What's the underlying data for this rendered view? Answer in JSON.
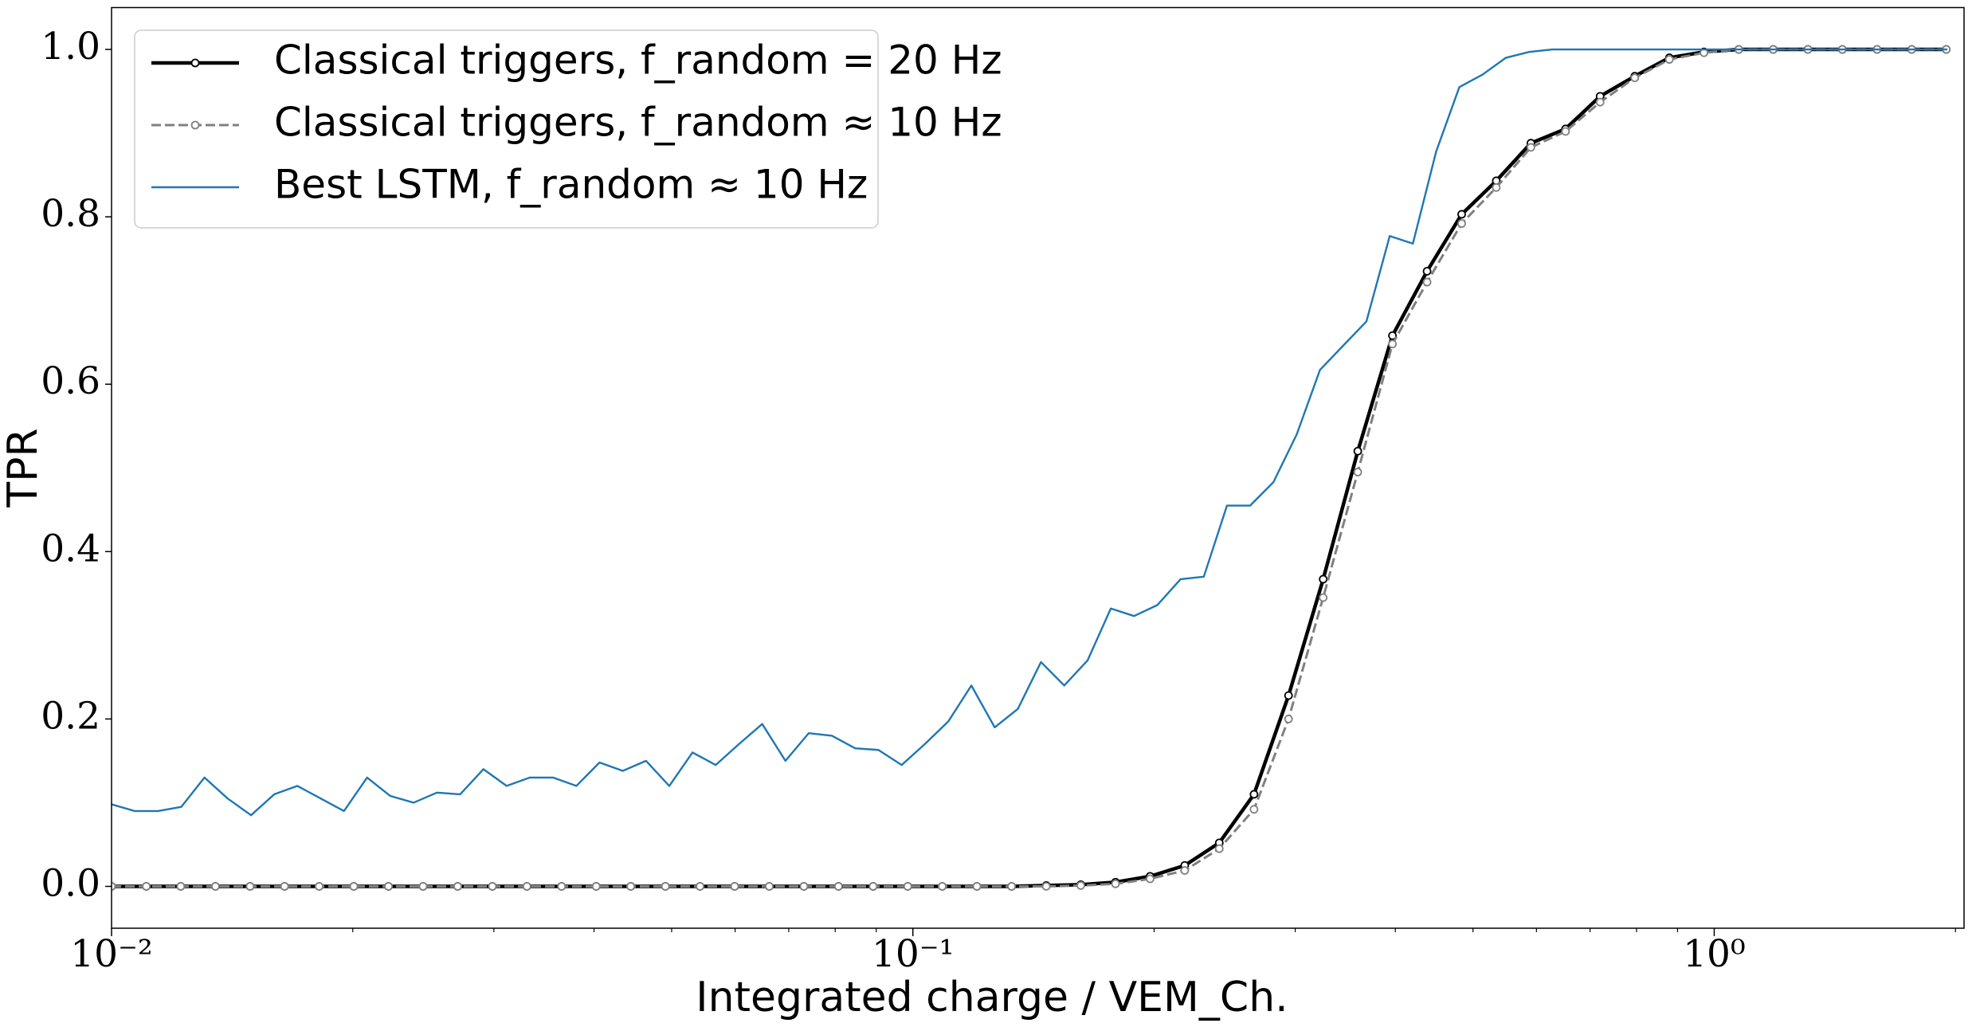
{
  "chart_data": {
    "type": "line",
    "xlabel": "Integrated charge / VEM_Ch.",
    "ylabel": "TPR",
    "xscale": "log",
    "xlim": [
      0.01,
      2.05
    ],
    "ylim": [
      -0.05,
      1.05
    ],
    "xticks": [
      {
        "value": 0.01,
        "label": "10⁻²"
      },
      {
        "value": 0.1,
        "label": "10⁻¹"
      },
      {
        "value": 1,
        "label": "10⁰"
      }
    ],
    "xminorticks": [
      0.02,
      0.03,
      0.04,
      0.05,
      0.06,
      0.07,
      0.08,
      0.09,
      0.2,
      0.3,
      0.4,
      0.5,
      0.6,
      0.7,
      0.8,
      0.9,
      2
    ],
    "yticks": [
      {
        "value": 0,
        "label": "0.0"
      },
      0.2,
      0.4,
      0.6,
      0.8,
      {
        "value": 1,
        "label": "1.0"
      }
    ],
    "legend": "upper left",
    "series": [
      {
        "name": "Classical triggers, f_random = 20 Hz",
        "color": "#000000",
        "style": "solid",
        "marker": true,
        "x": [
          0.01,
          0.01105,
          0.0122,
          0.01348,
          0.01489,
          0.01644,
          0.01816,
          0.02006,
          0.02216,
          0.02448,
          0.02704,
          0.02987,
          0.03299,
          0.03644,
          0.04025,
          0.04446,
          0.04911,
          0.05425,
          0.05992,
          0.06619,
          0.07311,
          0.08076,
          0.08921,
          0.09854,
          0.1088,
          0.1202,
          0.1328,
          0.1467,
          0.162,
          0.179,
          0.1977,
          0.2184,
          0.2412,
          0.2665,
          0.2943,
          0.3251,
          0.3591,
          0.3967,
          0.4382,
          0.484,
          0.5346,
          0.5905,
          0.6523,
          0.7205,
          0.7959,
          0.879,
          0.971,
          1.073,
          1.185,
          1.309,
          1.445,
          1.597,
          1.764,
          1.948
        ],
        "values": [
          0,
          0,
          0,
          0,
          0,
          0,
          0,
          0,
          0,
          0,
          0,
          0,
          0,
          0,
          0,
          0,
          0,
          0,
          0,
          0,
          0,
          0,
          0,
          0,
          0,
          0,
          0,
          0.001,
          0.002,
          0.005,
          0.012,
          0.025,
          0.052,
          0.11,
          0.228,
          0.367,
          0.52,
          0.658,
          0.735,
          0.803,
          0.843,
          0.888,
          0.905,
          0.944,
          0.968,
          0.99,
          0.997,
          1,
          1,
          1,
          1,
          1,
          1,
          1
        ]
      },
      {
        "name": "Classical triggers, f_random ≈ 10 Hz",
        "color": "#808080",
        "style": "dashed",
        "marker": true,
        "x": [
          0.01,
          0.01105,
          0.0122,
          0.01348,
          0.01489,
          0.01644,
          0.01816,
          0.02006,
          0.02216,
          0.02448,
          0.02704,
          0.02987,
          0.03299,
          0.03644,
          0.04025,
          0.04446,
          0.04911,
          0.05425,
          0.05992,
          0.06619,
          0.07311,
          0.08076,
          0.08921,
          0.09854,
          0.1088,
          0.1202,
          0.1328,
          0.1467,
          0.162,
          0.179,
          0.1977,
          0.2184,
          0.2412,
          0.2665,
          0.2943,
          0.3251,
          0.3591,
          0.3967,
          0.4382,
          0.484,
          0.5346,
          0.5905,
          0.6523,
          0.7205,
          0.7959,
          0.879,
          0.971,
          1.073,
          1.185,
          1.309,
          1.445,
          1.597,
          1.764,
          1.948
        ],
        "values": [
          0,
          0,
          0,
          0,
          0,
          0,
          0,
          0,
          0,
          0,
          0,
          0,
          0,
          0,
          0,
          0,
          0,
          0,
          0,
          0,
          0,
          0,
          0,
          0,
          0,
          0,
          0,
          0,
          0.001,
          0.003,
          0.009,
          0.019,
          0.045,
          0.092,
          0.2,
          0.345,
          0.495,
          0.648,
          0.722,
          0.792,
          0.835,
          0.883,
          0.902,
          0.937,
          0.966,
          0.988,
          0.996,
          1,
          1,
          1,
          1,
          1,
          1,
          1
        ]
      },
      {
        "name": "Best LSTM, f_random ≈ 10 Hz",
        "color": "#1f77b4",
        "style": "solid",
        "marker": false,
        "x": [
          0.01,
          0.01069,
          0.01143,
          0.01222,
          0.01306,
          0.01396,
          0.01493,
          0.01596,
          0.01706,
          0.01824,
          0.0195,
          0.02084,
          0.02228,
          0.02382,
          0.02547,
          0.02723,
          0.02911,
          0.03112,
          0.03327,
          0.03556,
          0.03802,
          0.04064,
          0.04345,
          0.04645,
          0.04966,
          0.05309,
          0.05675,
          0.06067,
          0.06486,
          0.06934,
          0.07413,
          0.07925,
          0.08472,
          0.09057,
          0.09683,
          0.1035,
          0.1107,
          0.1183,
          0.1265,
          0.1352,
          0.1445,
          0.1545,
          0.1652,
          0.1766,
          0.1888,
          0.2018,
          0.2158,
          0.2307,
          0.2466,
          0.2636,
          0.2818,
          0.3013,
          0.3221,
          0.3443,
          0.3681,
          0.3936,
          0.4207,
          0.4498,
          0.4808,
          0.514,
          0.5495,
          0.5875,
          0.6281,
          0.6714,
          0.7178,
          0.7674,
          0.8204,
          0.877,
          0.9376,
          1.002,
          1.072,
          1.146,
          1.225,
          1.309,
          1.4,
          1.496,
          1.6,
          1.71,
          1.828,
          1.954
        ],
        "values": [
          0.098,
          0.09,
          0.09,
          0.095,
          0.13,
          0.105,
          0.085,
          0.11,
          0.12,
          0.105,
          0.09,
          0.13,
          0.108,
          0.1,
          0.112,
          0.11,
          0.14,
          0.12,
          0.13,
          0.13,
          0.12,
          0.148,
          0.138,
          0.15,
          0.12,
          0.16,
          0.145,
          0.17,
          0.194,
          0.15,
          0.183,
          0.18,
          0.165,
          0.163,
          0.145,
          0.17,
          0.197,
          0.24,
          0.19,
          0.212,
          0.268,
          0.24,
          0.27,
          0.332,
          0.323,
          0.336,
          0.367,
          0.37,
          0.455,
          0.455,
          0.483,
          0.54,
          0.617,
          0.646,
          0.675,
          0.777,
          0.768,
          0.878,
          0.955,
          0.97,
          0.99,
          0.997,
          1,
          1,
          1,
          1,
          1,
          1,
          1,
          1,
          1,
          1,
          1,
          1,
          1,
          1,
          1,
          1,
          1,
          1
        ]
      }
    ]
  }
}
